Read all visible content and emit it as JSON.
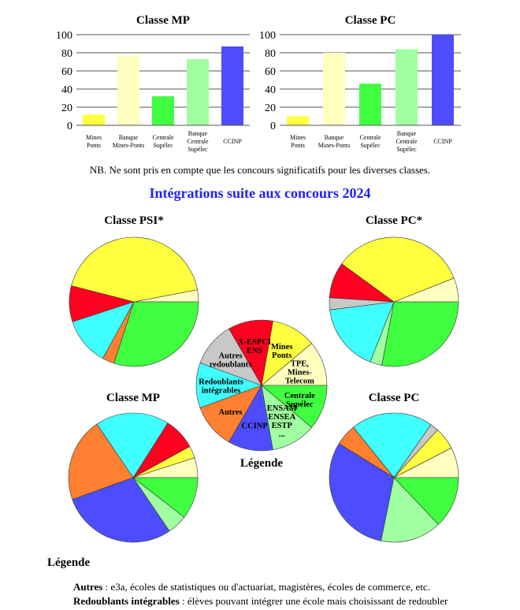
{
  "colors": {
    "yellow": "#ffff40",
    "lightyellow": "#ffffc0",
    "green": "#40ff40",
    "lightgreen": "#a0ffa0",
    "blue": "#4d4dff",
    "red": "#ff0020",
    "orange": "#ff8030",
    "cyan": "#40ffff",
    "gray": "#c8c8c8"
  },
  "nb": "NB. Ne sont pris en compte que les concours significatifs pour les diverses classes.",
  "main_title": "Intégrations suite aux concours 2024",
  "legend_heading": "Légende",
  "notes": [
    {
      "term": "Autres",
      "text": " : e3a, écoles de statistiques ou d'actuariat, magistères, écoles de commerce, etc."
    },
    {
      "term": "Redoublants intégrables",
      "text": " : élèves pouvant intégrer une école mais choisissant de redoubler"
    }
  ],
  "chart_data": [
    {
      "type": "bar",
      "title": "Classe MP",
      "ylim": [
        0,
        100
      ],
      "yticks": [
        0,
        20,
        40,
        60,
        80,
        100
      ],
      "grid": true,
      "categories": [
        [
          "Mines",
          "Ponts"
        ],
        [
          "Banque",
          "Mines-Ponts"
        ],
        [
          "Centrale",
          "Supélec"
        ],
        [
          "Banque",
          "Centrale",
          "Supélec"
        ],
        [
          "CCINP"
        ]
      ],
      "values": [
        12,
        77,
        32,
        73,
        87
      ],
      "bar_colors": [
        "yellow",
        "lightyellow",
        "green",
        "lightgreen",
        "blue"
      ]
    },
    {
      "type": "bar",
      "title": "Classe PC",
      "ylim": [
        0,
        100
      ],
      "yticks": [
        0,
        20,
        40,
        60,
        80,
        100
      ],
      "grid": true,
      "categories": [
        [
          "Mines",
          "Ponts"
        ],
        [
          "Banque",
          "Mines-Ponts"
        ],
        [
          "Centrale",
          "Supélec"
        ],
        [
          "Banque",
          "Centrale",
          "Supélec"
        ],
        [
          "CCINP"
        ]
      ],
      "values": [
        10,
        80,
        46,
        84,
        100
      ],
      "bar_colors": [
        "yellow",
        "lightyellow",
        "green",
        "lightgreen",
        "blue"
      ]
    },
    {
      "type": "pie",
      "title": "Classe PSI*",
      "slices": [
        {
          "color": "lightyellow",
          "value": 3
        },
        {
          "color": "yellow",
          "value": 43
        },
        {
          "color": "red",
          "value": 9
        },
        {
          "color": "cyan",
          "value": 12
        },
        {
          "color": "orange",
          "value": 3
        },
        {
          "color": "green",
          "value": 30
        }
      ]
    },
    {
      "type": "pie",
      "title": "Classe PC*",
      "slices": [
        {
          "color": "lightyellow",
          "value": 6
        },
        {
          "color": "yellow",
          "value": 34
        },
        {
          "color": "red",
          "value": 9
        },
        {
          "color": "gray",
          "value": 3
        },
        {
          "color": "cyan",
          "value": 17
        },
        {
          "color": "lightgreen",
          "value": 3
        },
        {
          "color": "green",
          "value": 28
        }
      ]
    },
    {
      "type": "pie",
      "title": "Classe MP",
      "slices": [
        {
          "color": "lightyellow",
          "value": 5
        },
        {
          "color": "yellow",
          "value": 3
        },
        {
          "color": "red",
          "value": 8
        },
        {
          "color": "cyan",
          "value": 18.5
        },
        {
          "color": "orange",
          "value": 21
        },
        {
          "color": "blue",
          "value": 29
        },
        {
          "color": "lightgreen",
          "value": 5
        },
        {
          "color": "green",
          "value": 10.5
        }
      ]
    },
    {
      "type": "pie",
      "title": "Classe PC",
      "slices": [
        {
          "color": "lightyellow",
          "value": 7.6
        },
        {
          "color": "yellow",
          "value": 5.6
        },
        {
          "color": "gray",
          "value": 2.1
        },
        {
          "color": "cyan",
          "value": 20.5
        },
        {
          "color": "orange",
          "value": 5.4
        },
        {
          "color": "blue",
          "value": 30.6
        },
        {
          "color": "lightgreen",
          "value": 15.3
        },
        {
          "color": "green",
          "value": 12.9
        }
      ]
    },
    {
      "type": "pie",
      "title": "Légende",
      "slices": [
        {
          "color": "lightyellow",
          "value": 1,
          "label": [
            "TPE,",
            "Mines-",
            "Telecom"
          ]
        },
        {
          "color": "yellow",
          "value": 1,
          "label": [
            "Mines",
            "Ponts"
          ]
        },
        {
          "color": "red",
          "value": 1,
          "label": [
            "X-ESPCI",
            "ENS"
          ]
        },
        {
          "color": "gray",
          "value": 1,
          "label": [
            "Autres",
            "redoublants"
          ]
        },
        {
          "color": "cyan",
          "value": 1,
          "label": [
            "Redoublants",
            "intégrables"
          ]
        },
        {
          "color": "orange",
          "value": 1,
          "label": [
            "Autres"
          ]
        },
        {
          "color": "blue",
          "value": 1,
          "label": [
            "CCINP"
          ]
        },
        {
          "color": "lightgreen",
          "value": 1,
          "label": [
            "ENSAM",
            "ENSEA",
            "ESTP",
            "..."
          ]
        },
        {
          "color": "green",
          "value": 1,
          "label": [
            "Centrale",
            "Supélec"
          ]
        }
      ]
    }
  ]
}
